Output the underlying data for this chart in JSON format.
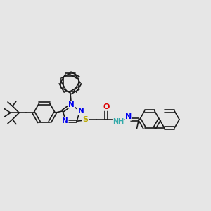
{
  "background_color": "#e6e6e6",
  "bond_color": "#1a1a1a",
  "bond_width": 1.2,
  "atom_colors": {
    "N": "#0000ee",
    "S": "#bbaa00",
    "O": "#dd0000",
    "NH": "#33aaaa",
    "C": "#1a1a1a"
  }
}
